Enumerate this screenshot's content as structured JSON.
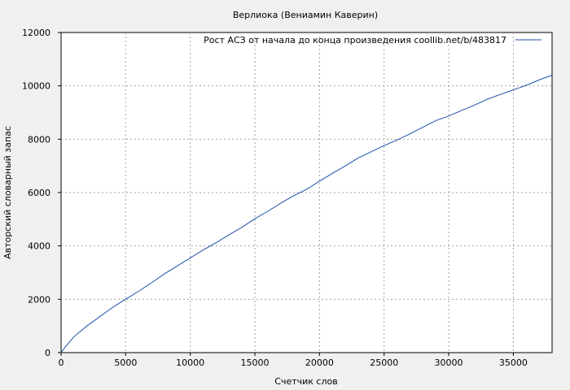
{
  "chart_data": {
    "type": "line",
    "title": "Верлиока (Вениамин Каверин)",
    "xlabel": "Счетчик слов",
    "ylabel": "Авторский словарный запас",
    "xlim": [
      0,
      38000
    ],
    "ylim": [
      0,
      12000
    ],
    "xticks": [
      0,
      5000,
      10000,
      15000,
      20000,
      25000,
      30000,
      35000
    ],
    "yticks": [
      0,
      2000,
      4000,
      6000,
      8000,
      10000,
      12000
    ],
    "xtick_labels": [
      "0",
      "5000",
      "10000",
      "15000",
      "20000",
      "25000",
      "30000",
      "35000"
    ],
    "ytick_labels": [
      "0",
      "2000",
      "4000",
      "6000",
      "8000",
      "10000",
      "12000"
    ],
    "grid": true,
    "legend_position": "top-right",
    "series": [
      {
        "name": "Рост АСЗ от начала до конца произведения coollib.net/b/483817",
        "color": "#1f4fa8",
        "x": [
          0,
          300,
          1000,
          2000,
          3000,
          4000,
          5000,
          6000,
          7000,
          8000,
          9000,
          10000,
          11000,
          12000,
          13000,
          14000,
          15000,
          16000,
          17000,
          18000,
          19000,
          20000,
          21000,
          22000,
          23000,
          24000,
          25000,
          26000,
          27000,
          28000,
          29000,
          30000,
          31000,
          32000,
          33000,
          34000,
          35000,
          36000,
          37000,
          38000
        ],
        "y": [
          0,
          200,
          600,
          1000,
          1350,
          1700,
          2000,
          2300,
          2620,
          2950,
          3250,
          3550,
          3850,
          4120,
          4420,
          4700,
          5020,
          5300,
          5600,
          5880,
          6120,
          6430,
          6720,
          7000,
          7300,
          7530,
          7760,
          7970,
          8200,
          8450,
          8700,
          8870,
          9080,
          9280,
          9500,
          9680,
          9850,
          10020,
          10220,
          10400
        ]
      }
    ]
  }
}
